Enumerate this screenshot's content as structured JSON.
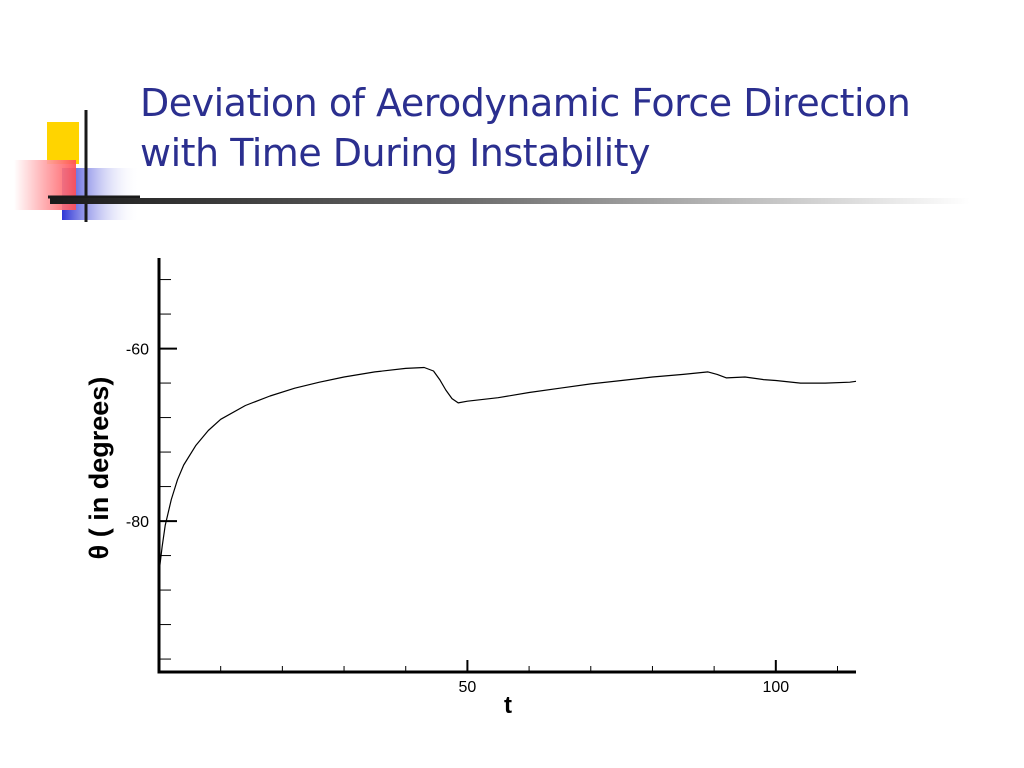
{
  "slide": {
    "title_line1": "Deviation of Aerodynamic Force Direction",
    "title_line2": "with Time During Instability",
    "title_color": "#2B2F8F"
  },
  "decor": {
    "yellow": "#FFD400",
    "red": "#FF4D55",
    "blue": "#2E35D6",
    "line": "#1A1A1A"
  },
  "chart_data": {
    "type": "line",
    "title": "",
    "xlabel": "t",
    "ylabel": "θ ( in degrees)",
    "xlim": [
      0,
      113
    ],
    "ylim": [
      -97.5,
      -49.5
    ],
    "x_ticks": [
      50,
      100
    ],
    "y_ticks": [
      -60,
      -80
    ],
    "x_minor_step": 10,
    "y_minor_step": 4,
    "grid": false,
    "legend": "none",
    "series": [
      {
        "color": "#000000",
        "points": [
          [
            0,
            -86
          ],
          [
            0.5,
            -83
          ],
          [
            1,
            -80.5
          ],
          [
            2,
            -77.5
          ],
          [
            3,
            -75.2
          ],
          [
            4,
            -73.5
          ],
          [
            6,
            -71.2
          ],
          [
            8,
            -69.5
          ],
          [
            10,
            -68.2
          ],
          [
            14,
            -66.6
          ],
          [
            18,
            -65.5
          ],
          [
            22,
            -64.6
          ],
          [
            26,
            -63.9
          ],
          [
            30,
            -63.3
          ],
          [
            35,
            -62.7
          ],
          [
            40,
            -62.3
          ],
          [
            43,
            -62.2
          ],
          [
            44.5,
            -62.6
          ],
          [
            45.5,
            -63.6
          ],
          [
            46.5,
            -64.8
          ],
          [
            47.5,
            -65.8
          ],
          [
            48.5,
            -66.3
          ],
          [
            50,
            -66.1
          ],
          [
            55,
            -65.7
          ],
          [
            60,
            -65.1
          ],
          [
            65,
            -64.6
          ],
          [
            70,
            -64.1
          ],
          [
            75,
            -63.7
          ],
          [
            80,
            -63.3
          ],
          [
            85,
            -63.0
          ],
          [
            89,
            -62.7
          ],
          [
            90.5,
            -63.0
          ],
          [
            92,
            -63.4
          ],
          [
            95,
            -63.3
          ],
          [
            98,
            -63.6
          ],
          [
            100,
            -63.7
          ],
          [
            104,
            -64.0
          ],
          [
            108,
            -64.0
          ],
          [
            112,
            -63.9
          ],
          [
            113,
            -63.8
          ]
        ]
      }
    ]
  }
}
